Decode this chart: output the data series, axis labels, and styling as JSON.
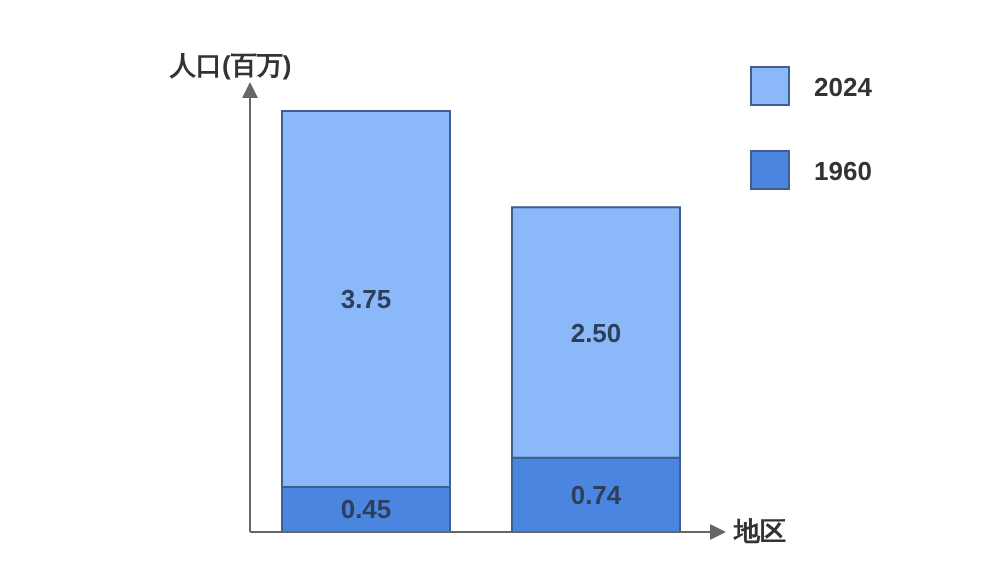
{
  "chart_data": {
    "type": "bar",
    "stacked": true,
    "xlabel": "地区",
    "ylabel": "人口(百万)",
    "categories": [
      null,
      null
    ],
    "series": [
      {
        "name": "1960",
        "color": "#4a86e0",
        "values": [
          0.45,
          0.74
        ],
        "value_labels": [
          "0.45",
          "0.74"
        ]
      },
      {
        "name": "2024",
        "color": "#8ab8f8",
        "values": [
          3.75,
          2.5
        ],
        "value_labels": [
          "3.75",
          "2.50"
        ]
      }
    ],
    "legend": "top right",
    "grid": false
  }
}
